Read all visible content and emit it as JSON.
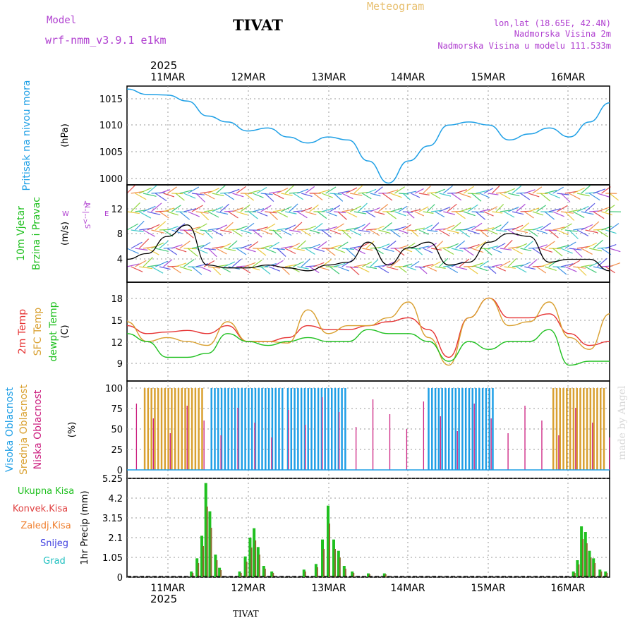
{
  "header": {
    "model_label": "Model",
    "model_name": "wrf-nmm_v3.9.1  e1km",
    "station": "TIVAT",
    "meteogram_label": "Meteogram",
    "lonlat": "lon,lat (18.65E, 42.4N)",
    "elevation": "Nadmorska Visina 2m",
    "model_elevation": "Nadmorska Visina u modelu 111.533m"
  },
  "timeline": {
    "year": "2025",
    "dates": [
      "11MAR",
      "12MAR",
      "13MAR",
      "14MAR",
      "15MAR",
      "16MAR"
    ]
  },
  "footer": {
    "station": "TIVAT",
    "credit": "made by Angel"
  },
  "colors": {
    "pressure": "#1fa0e6",
    "temp2m": "#e63232",
    "sfc_temp": "#d9a030",
    "dewpoint": "#20c020",
    "cloud_high": "#1f9fe6",
    "cloud_mid": "#d9a030",
    "cloud_low": "#cc2080",
    "precip_total": "#20c020",
    "precip_conv": "#e04040",
    "precip_frozen": "#f08030",
    "snow": "#4040e0",
    "hail": "#20c0c0",
    "purple": "#b040d0",
    "gold": "#e8c070"
  },
  "chart_data": [
    {
      "type": "line",
      "name": "pressure",
      "label_lines": [
        "Pritisak na nivou mora"
      ],
      "unit": "(hPa)",
      "ylim": [
        1000,
        1016.5
      ],
      "yticks": [
        "1000",
        "1005",
        "1010",
        "1015"
      ],
      "grid": true,
      "x_days": [
        0,
        0.25,
        0.5,
        0.75,
        1.0,
        1.25,
        1.5,
        1.75,
        2.0,
        2.25,
        2.5,
        2.75,
        3.0,
        3.25,
        3.5,
        3.75,
        4.0,
        4.25,
        4.5,
        4.75,
        5.0,
        5.25,
        5.5,
        5.75,
        6.0
      ],
      "series": [
        {
          "values": [
            1016,
            1015.1,
            1015,
            1014,
            1011.5,
            1010.5,
            1009,
            1009.5,
            1008,
            1007,
            1008,
            1007.5,
            1004,
            1000.3,
            1004,
            1006.5,
            1010,
            1010.5,
            1010,
            1007.5,
            1008.5,
            1009.5,
            1008,
            1010.5,
            1013.7
          ]
        }
      ]
    },
    {
      "type": "line",
      "name": "wind",
      "label_lines": [
        "10m Vjetar",
        "Brzina i Pravac"
      ],
      "unit": "(m/s)",
      "compass": [
        "N",
        "W",
        "<--|-->",
        "E",
        "S"
      ],
      "ylim": [
        0,
        17
      ],
      "yticks": [
        "4",
        "8",
        "12"
      ],
      "grid": true,
      "x_days": [
        0,
        0.25,
        0.5,
        0.75,
        1.0,
        1.25,
        1.5,
        1.75,
        2.0,
        2.25,
        2.5,
        2.75,
        3.0,
        3.25,
        3.5,
        3.75,
        4.0,
        4.25,
        4.5,
        4.75,
        5.0,
        5.25,
        5.5,
        5.75,
        6.0
      ],
      "series": [
        {
          "name": "speed",
          "values": [
            4,
            5,
            8,
            10,
            3,
            2.5,
            2.5,
            3,
            2.5,
            2,
            3,
            3.5,
            7,
            3,
            6,
            7,
            3,
            3.5,
            7,
            8.5,
            8,
            3.5,
            4,
            4,
            2
          ]
        }
      ]
    },
    {
      "type": "line",
      "name": "temperature",
      "label_lines": [
        "2m Temp",
        "SFC Temp",
        "dewpt Temp"
      ],
      "unit": "(C)",
      "ylim": [
        7,
        19.5
      ],
      "yticks": [
        "9",
        "12",
        "15",
        "18"
      ],
      "grid": true,
      "x_days": [
        0,
        0.25,
        0.5,
        0.75,
        1.0,
        1.25,
        1.5,
        1.75,
        2.0,
        2.25,
        2.5,
        2.75,
        3.0,
        3.25,
        3.5,
        3.75,
        4.0,
        4.25,
        4.5,
        4.75,
        5.0,
        5.25,
        5.5,
        5.75,
        6.0
      ],
      "series": [
        {
          "name": "2m Temp",
          "values": [
            14,
            13,
            13.2,
            13.4,
            13,
            14,
            12,
            12,
            12.5,
            14,
            13.5,
            13.5,
            14,
            14.5,
            15,
            13.5,
            10,
            15,
            17.5,
            15,
            15,
            15.5,
            13,
            11.5,
            12
          ]
        },
        {
          "name": "SFC Temp",
          "values": [
            14.5,
            12,
            12.5,
            12,
            11.5,
            14.5,
            12,
            12,
            11.8,
            16,
            13,
            14,
            14,
            15,
            17,
            12.5,
            9,
            15,
            17.5,
            14,
            14.5,
            17,
            12.5,
            11,
            15.5
          ]
        },
        {
          "name": "dewpt Temp",
          "values": [
            13,
            12,
            10,
            10,
            10.5,
            13,
            12,
            11.5,
            12,
            12.5,
            12,
            12,
            13.5,
            13,
            13,
            12,
            9.5,
            12,
            11,
            12,
            12,
            13.5,
            9,
            9.5,
            9.5
          ]
        }
      ]
    },
    {
      "type": "bar",
      "name": "clouds",
      "label_lines": [
        "Visoka Oblacnost",
        "Srednja Oblacnost",
        "Niska  Oblacnost"
      ],
      "unit": "(%)",
      "ylim": [
        0,
        100
      ],
      "yticks": [
        "0",
        "25",
        "50",
        "75",
        "100"
      ],
      "grid": true,
      "spans_days": [
        {
          "start": 0.22,
          "end": 0.95,
          "kind": "mid"
        },
        {
          "start": 1.05,
          "end": 1.95,
          "kind": "high"
        },
        {
          "start": 2.0,
          "end": 2.75,
          "kind": "high"
        },
        {
          "start": 3.75,
          "end": 4.55,
          "kind": "high"
        },
        {
          "start": 5.3,
          "end": 5.95,
          "kind": "mid"
        }
      ]
    },
    {
      "type": "bar",
      "name": "precipitation",
      "label_lines": [
        "Ukupna  Kisa",
        "Konvek.Kisa",
        "Zaledj.Kisa",
        "Snijeg",
        "Grad"
      ],
      "unit": "1hr Precip (mm)",
      "ylim": [
        0,
        5.25
      ],
      "yticks": [
        "0",
        "1.05",
        "2.1",
        "3.15",
        "4.2",
        "5.25"
      ],
      "grid": true,
      "bars": [
        {
          "day": 0.8,
          "value": 0.3
        },
        {
          "day": 0.87,
          "value": 1.0
        },
        {
          "day": 0.93,
          "value": 2.2
        },
        {
          "day": 0.98,
          "value": 5.0
        },
        {
          "day": 1.03,
          "value": 3.5
        },
        {
          "day": 1.1,
          "value": 1.2
        },
        {
          "day": 1.15,
          "value": 0.5
        },
        {
          "day": 1.4,
          "value": 0.3
        },
        {
          "day": 1.47,
          "value": 1.1
        },
        {
          "day": 1.53,
          "value": 2.1
        },
        {
          "day": 1.58,
          "value": 2.6
        },
        {
          "day": 1.63,
          "value": 1.6
        },
        {
          "day": 1.7,
          "value": 0.6
        },
        {
          "day": 1.8,
          "value": 0.3
        },
        {
          "day": 2.2,
          "value": 0.4
        },
        {
          "day": 2.35,
          "value": 0.7
        },
        {
          "day": 2.43,
          "value": 2.0
        },
        {
          "day": 2.5,
          "value": 3.8
        },
        {
          "day": 2.57,
          "value": 2.0
        },
        {
          "day": 2.63,
          "value": 1.4
        },
        {
          "day": 2.7,
          "value": 0.6
        },
        {
          "day": 2.8,
          "value": 0.3
        },
        {
          "day": 3.0,
          "value": 0.2
        },
        {
          "day": 3.2,
          "value": 0.2
        },
        {
          "day": 5.55,
          "value": 0.3
        },
        {
          "day": 5.6,
          "value": 0.9
        },
        {
          "day": 5.65,
          "value": 2.7
        },
        {
          "day": 5.7,
          "value": 2.4
        },
        {
          "day": 5.75,
          "value": 1.4
        },
        {
          "day": 5.8,
          "value": 1.0
        },
        {
          "day": 5.88,
          "value": 0.4
        },
        {
          "day": 5.95,
          "value": 0.3
        }
      ]
    }
  ]
}
